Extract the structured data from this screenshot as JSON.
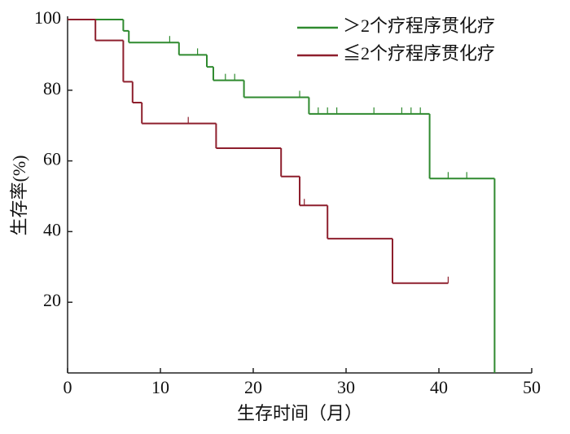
{
  "chart_data": {
    "type": "step",
    "xlabel": "生存时间（月）",
    "ylabel": "生存率(%)",
    "xlim": [
      0,
      50
    ],
    "ylim": [
      0,
      100
    ],
    "xticks": [
      0,
      10,
      20,
      30,
      40,
      50
    ],
    "yticks": [
      20,
      40,
      60,
      80,
      100
    ],
    "legend": "upper right",
    "series": [
      {
        "name": "＞2个疗程序贯化疗",
        "color": "#2f8a2f",
        "x": [
          0,
          6,
          6.6,
          12,
          15,
          15.7,
          19,
          26,
          39,
          46
        ],
        "values": [
          100,
          96.8,
          93.5,
          90,
          86.6,
          82.8,
          78,
          73.3,
          55,
          0
        ],
        "censored": [
          11,
          14,
          17,
          18,
          25,
          27,
          28,
          29,
          33,
          36,
          37,
          38,
          41,
          43
        ]
      },
      {
        "name": "≦2个疗程序贯化疗",
        "color": "#8e1f2d",
        "x": [
          0,
          3,
          6,
          7,
          8,
          16,
          23,
          25,
          28,
          35,
          41
        ],
        "values": [
          100,
          94.1,
          82.4,
          76.5,
          70.6,
          63.6,
          55.6,
          47.4,
          38,
          25.4,
          25.4
        ],
        "censored": [
          13,
          16,
          25.5,
          41
        ]
      }
    ]
  }
}
